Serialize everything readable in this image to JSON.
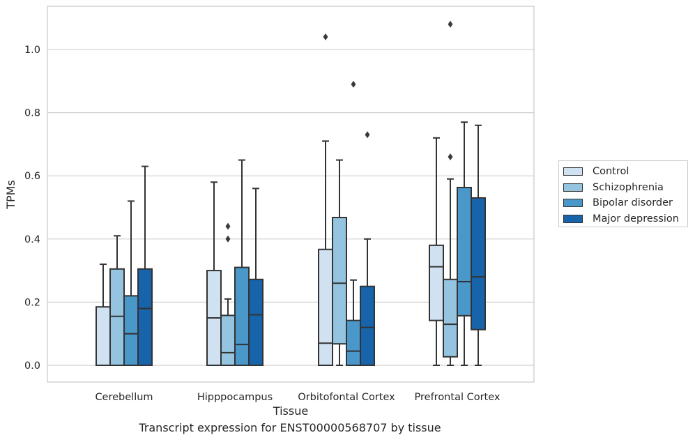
{
  "chart_data": {
    "type": "box",
    "xlabel": "Tissue",
    "ylabel": "TPMs",
    "ylim": [
      -0.05,
      1.14
    ],
    "yticks": [
      "0.0",
      "0.2",
      "0.4",
      "0.6",
      "0.8",
      "1.0"
    ],
    "grid": "horizontal",
    "legend_position": "right",
    "categories": [
      "Cerebellum",
      "Hipppocampus",
      "Orbitofontal Cortex",
      "Prefrontal Cortex"
    ],
    "series": [
      {
        "name": "Control",
        "color": "#d0e1f2"
      },
      {
        "name": "Schizophrenia",
        "color": "#94c4df"
      },
      {
        "name": "Bipolar disorder",
        "color": "#4a98c9"
      },
      {
        "name": "Major depression",
        "color": "#1764ab"
      }
    ],
    "boxes": [
      [
        {
          "whisker_low": 0.0,
          "q1": 0.0,
          "median": 0.0,
          "q3": 0.185,
          "whisker_high": 0.32,
          "outliers": []
        },
        {
          "whisker_low": 0.0,
          "q1": 0.0,
          "median": 0.155,
          "q3": 0.305,
          "whisker_high": 0.41,
          "outliers": []
        },
        {
          "whisker_low": 0.0,
          "q1": 0.0,
          "median": 0.1,
          "q3": 0.22,
          "whisker_high": 0.52,
          "outliers": []
        },
        {
          "whisker_low": 0.0,
          "q1": 0.0,
          "median": 0.18,
          "q3": 0.305,
          "whisker_high": 0.63,
          "outliers": []
        }
      ],
      [
        {
          "whisker_low": 0.0,
          "q1": 0.0,
          "median": 0.15,
          "q3": 0.3,
          "whisker_high": 0.58,
          "outliers": []
        },
        {
          "whisker_low": 0.0,
          "q1": 0.0,
          "median": 0.04,
          "q3": 0.158,
          "whisker_high": 0.21,
          "outliers": [
            0.4,
            0.44
          ]
        },
        {
          "whisker_low": 0.0,
          "q1": 0.0,
          "median": 0.066,
          "q3": 0.31,
          "whisker_high": 0.65,
          "outliers": []
        },
        {
          "whisker_low": 0.0,
          "q1": 0.0,
          "median": 0.16,
          "q3": 0.272,
          "whisker_high": 0.56,
          "outliers": []
        }
      ],
      [
        {
          "whisker_low": 0.0,
          "q1": 0.0,
          "median": 0.07,
          "q3": 0.367,
          "whisker_high": 0.71,
          "outliers": [
            1.04
          ]
        },
        {
          "whisker_low": 0.0,
          "q1": 0.068,
          "median": 0.26,
          "q3": 0.468,
          "whisker_high": 0.65,
          "outliers": []
        },
        {
          "whisker_low": 0.0,
          "q1": 0.0,
          "median": 0.045,
          "q3": 0.142,
          "whisker_high": 0.27,
          "outliers": [
            0.89
          ]
        },
        {
          "whisker_low": 0.0,
          "q1": 0.0,
          "median": 0.12,
          "q3": 0.25,
          "whisker_high": 0.4,
          "outliers": [
            0.73
          ]
        }
      ],
      [
        {
          "whisker_low": 0.0,
          "q1": 0.142,
          "median": 0.312,
          "q3": 0.38,
          "whisker_high": 0.72,
          "outliers": []
        },
        {
          "whisker_low": 0.0,
          "q1": 0.027,
          "median": 0.13,
          "q3": 0.272,
          "whisker_high": 0.59,
          "outliers": [
            0.66,
            1.08
          ]
        },
        {
          "whisker_low": 0.0,
          "q1": 0.157,
          "median": 0.265,
          "q3": 0.563,
          "whisker_high": 0.77,
          "outliers": []
        },
        {
          "whisker_low": 0.0,
          "q1": 0.113,
          "median": 0.28,
          "q3": 0.53,
          "whisker_high": 0.76,
          "outliers": []
        }
      ]
    ]
  },
  "caption": "Transcript expression for ENST00000568707 by tissue"
}
